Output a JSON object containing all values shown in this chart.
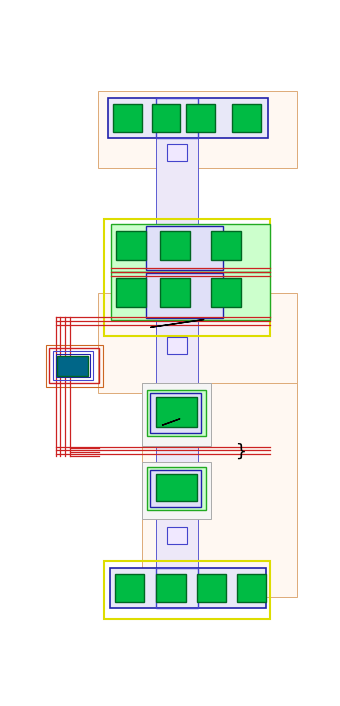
{
  "fig_w": 3.4,
  "fig_h": 7.06,
  "dpi": 100,
  "bg": "#ffffff",
  "c_darkblue": "#2020aa",
  "c_medblue": "#4444cc",
  "c_lavender": "#ede8f8",
  "c_green": "#00bb44",
  "c_darkgreen": "#006622",
  "c_ltgreen": "#ccffcc",
  "c_yellow": "#dddd00",
  "c_red": "#cc2222",
  "c_orange": "#ffcc77",
  "c_teal": "#006688",
  "c_ltblue": "#e0e0f8",
  "c_rowbg": "#e8e8f8",
  "c_peach": "#fff8f2",
  "c_peach_edge": "#ddaa77",
  "c_via": "#f0e8ff",
  "c_green2": "#22aa22"
}
